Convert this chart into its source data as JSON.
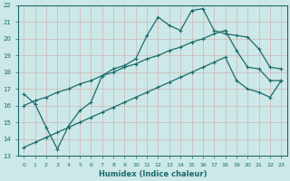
{
  "xlabel": "Humidex (Indice chaleur)",
  "bg_color": "#cce8e8",
  "line_color": "#1a6b6b",
  "grid_color": "#b0d0d0",
  "xlim": [
    -0.5,
    23.5
  ],
  "ylim": [
    13,
    22
  ],
  "xticks": [
    0,
    1,
    2,
    3,
    4,
    5,
    6,
    7,
    8,
    9,
    10,
    11,
    12,
    13,
    14,
    15,
    16,
    17,
    18,
    19,
    20,
    21,
    22,
    23
  ],
  "yticks": [
    13,
    14,
    15,
    16,
    17,
    18,
    19,
    20,
    21,
    22
  ],
  "line1_x": [
    0,
    1,
    2,
    3,
    4,
    5,
    6,
    7,
    8,
    9,
    10,
    11,
    12,
    13,
    14,
    15,
    16,
    17,
    18,
    19,
    20,
    21,
    22,
    23
  ],
  "line1_y": [
    16.7,
    16.1,
    14.7,
    13.4,
    14.8,
    15.7,
    16.2,
    17.8,
    18.2,
    18.4,
    18.8,
    20.2,
    21.3,
    20.8,
    20.5,
    21.7,
    21.8,
    20.5,
    20.3,
    20.2,
    20.1,
    19.4,
    18.3,
    18.2
  ],
  "line2_x": [
    0,
    1,
    2,
    3,
    4,
    5,
    6,
    7,
    8,
    9,
    10,
    11,
    12,
    13,
    14,
    15,
    16,
    17,
    18,
    19,
    20,
    21,
    22,
    23
  ],
  "line2_y": [
    16.0,
    16.3,
    16.5,
    16.8,
    17.0,
    17.3,
    17.5,
    17.8,
    18.0,
    18.3,
    18.5,
    18.8,
    19.0,
    19.3,
    19.5,
    19.8,
    20.0,
    20.3,
    20.5,
    19.3,
    18.3,
    18.2,
    17.5,
    17.5
  ],
  "line3_x": [
    0,
    1,
    2,
    3,
    4,
    5,
    6,
    7,
    8,
    9,
    10,
    11,
    12,
    13,
    14,
    15,
    16,
    17,
    18,
    19,
    20,
    21,
    22,
    23
  ],
  "line3_y": [
    13.5,
    13.8,
    14.1,
    14.4,
    14.7,
    15.0,
    15.3,
    15.6,
    15.9,
    16.2,
    16.5,
    16.8,
    17.1,
    17.4,
    17.7,
    18.0,
    18.3,
    18.6,
    18.9,
    17.5,
    17.0,
    16.8,
    16.5,
    17.5
  ]
}
